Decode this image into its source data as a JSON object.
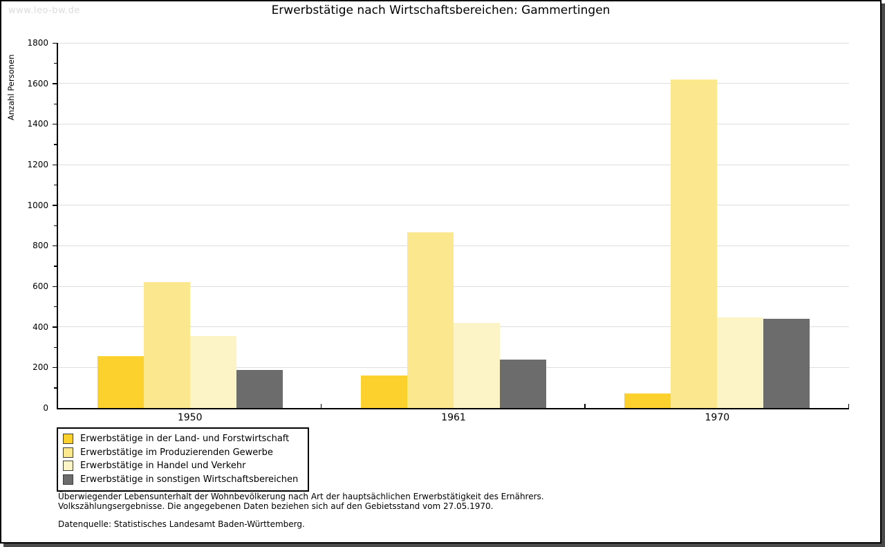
{
  "watermark": "www.leo-bw.de",
  "title": "Erwerbstätige nach Wirtschaftsbereichen: Gammertingen",
  "chart_data": {
    "type": "bar",
    "title": "Erwerbstätige nach Wirtschaftsbereichen: Gammertingen",
    "xlabel": "",
    "ylabel": "Anzahl Personen",
    "ylim": [
      0,
      1800
    ],
    "ytick_major": 200,
    "ytick_minor": 100,
    "grid": true,
    "legend_position": "bottom-left",
    "categories": [
      "1950",
      "1961",
      "1970"
    ],
    "series": [
      {
        "name": "Erwerbstätige in der Land- und Forstwirtschaft",
        "color": "#fcd12d",
        "values": [
          255,
          160,
          70
        ]
      },
      {
        "name": "Erwerbstätige im Produzierenden Gewerbe",
        "color": "#fbe78d",
        "values": [
          620,
          865,
          1620
        ]
      },
      {
        "name": "Erwerbstätige in Handel und Verkehr",
        "color": "#fcf4c7",
        "values": [
          355,
          420,
          447
        ]
      },
      {
        "name": "Erwerbstätige in sonstigen Wirtschaftsbereichen",
        "color": "#6c6c6c",
        "values": [
          187,
          240,
          440
        ]
      }
    ]
  },
  "footnotes": {
    "line1": "Überwiegender Lebensunterhalt der Wohnbevölkerung nach Art der hauptsächlichen Erwerbstätigkeit des Ernährers.",
    "line2": "Volkszählungsergebnisse. Die angegebenen Daten beziehen sich auf den Gebietsstand vom 27.05.1970.",
    "source": "Datenquelle: Statistisches Landesamt Baden-Württemberg."
  }
}
